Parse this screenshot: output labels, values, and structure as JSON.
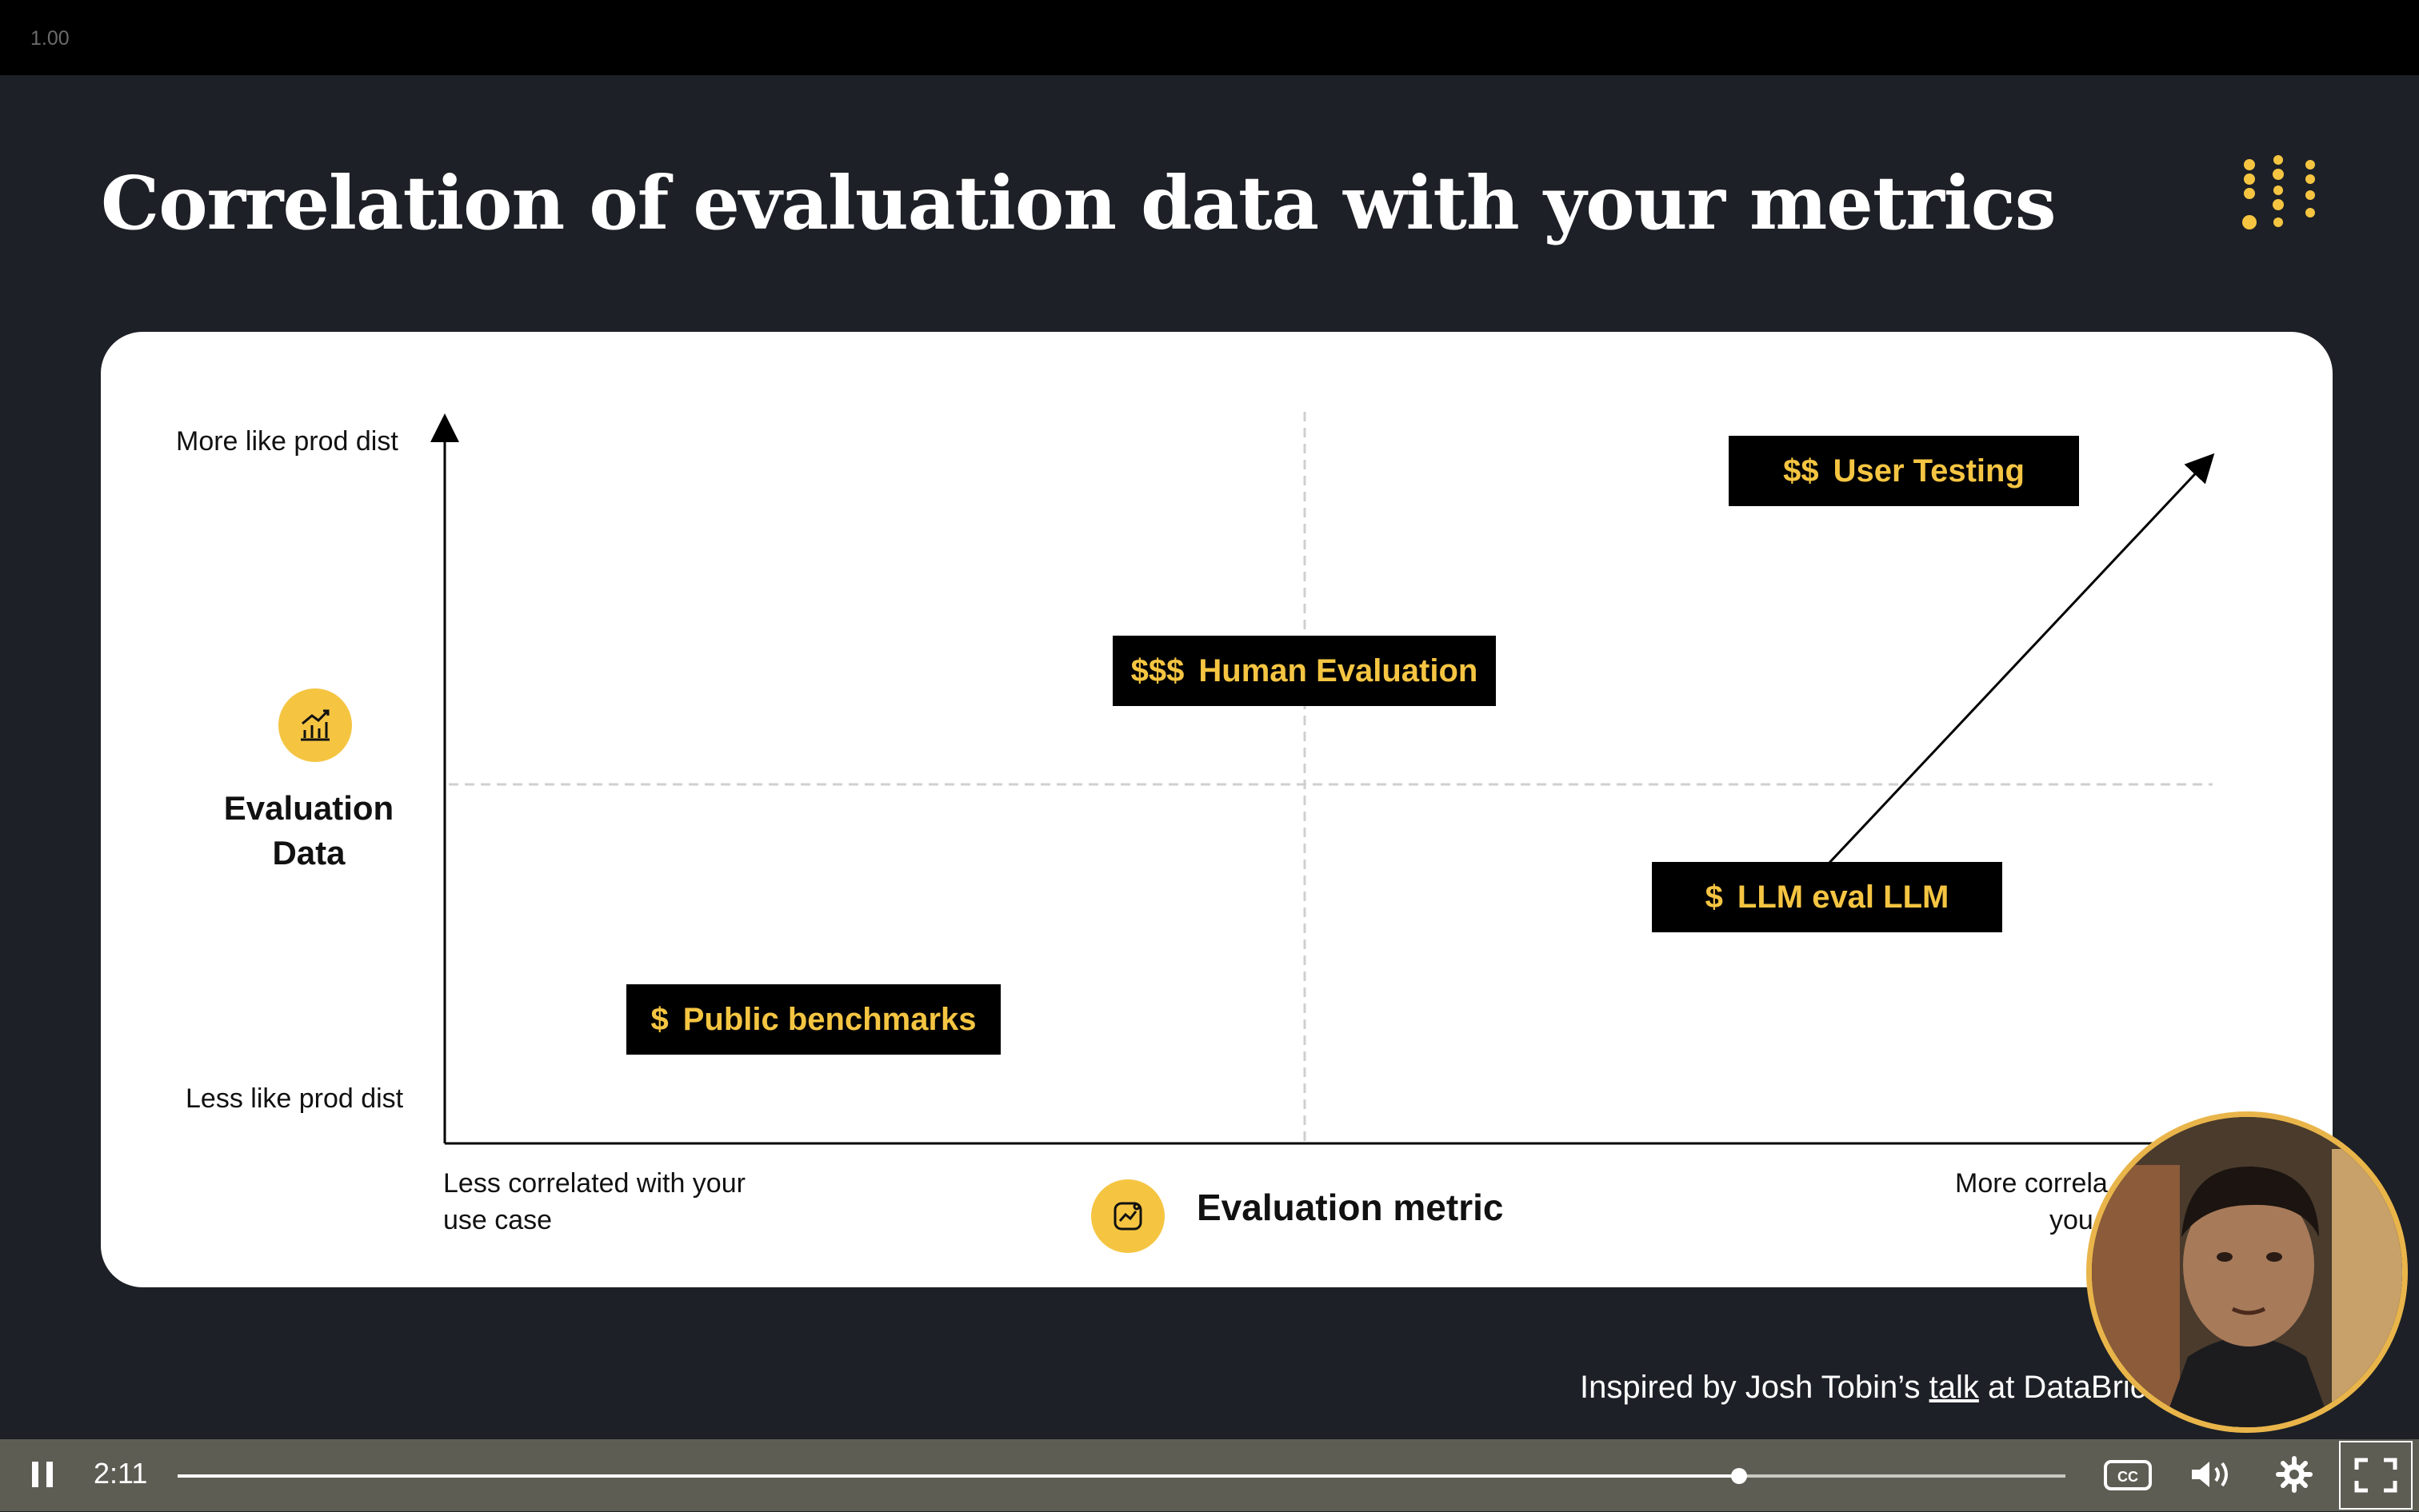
{
  "player": {
    "speed": "1.00",
    "current_time": "2:11",
    "progress": 0.827
  },
  "slide": {
    "title": "Correlation of evaluation data with your metrics",
    "y_axis": {
      "top_label": "More like prod dist",
      "bottom_label": "Less like prod dist",
      "name": "Evaluation Data"
    },
    "x_axis": {
      "left_label_line1": "Less correlated with your",
      "left_label_line2": "use case",
      "right_label_line1": "More correla",
      "right_label_line2": "you",
      "name": "Evaluation metric"
    },
    "tags": [
      {
        "cost": "$$",
        "label": "User Testing"
      },
      {
        "cost": "$$$",
        "label": "Human Evaluation"
      },
      {
        "cost": "$",
        "label": "LLM eval LLM"
      },
      {
        "cost": "$",
        "label": "Public benchmarks"
      }
    ],
    "footer": {
      "prefix": "Inspired by Josh Tobin’s",
      "link": "talk",
      "suffix": "at DataBric"
    }
  },
  "colors": {
    "accent": "#f5c542",
    "background": "#1d2026",
    "card": "#ffffff",
    "tag_bg": "#000000"
  },
  "icons": [
    "pause-icon",
    "captions-icon",
    "volume-icon",
    "settings-icon",
    "fullscreen-icon",
    "chart-growth-icon",
    "metric-icon",
    "dot-grid-logo-icon"
  ]
}
